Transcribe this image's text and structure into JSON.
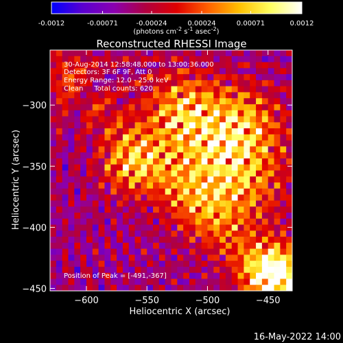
{
  "colorbar": {
    "tick_labels": [
      "-0.0012",
      "-0.00071",
      "-0.00024",
      "0.00024",
      "0.00071",
      "0.0012"
    ],
    "tick_values": [
      -0.0012,
      -0.00071,
      -0.00024,
      0.00024,
      0.00071,
      0.0012
    ],
    "range": [
      -0.0012,
      0.0012
    ],
    "units_html": "(photons cm<tspan dy='-4' font-size='8'>-2</tspan><tspan dy='4'> s</tspan><tspan dy='-4' font-size='8'>-1</tspan><tspan dy='4'> asec</tspan><tspan dy='-4' font-size='8'>-2</tspan><tspan dy='4'>)</tspan>",
    "colors": [
      "#0000ff",
      "#5a00d0",
      "#8a00b0",
      "#b00040",
      "#e00000",
      "#ff6000",
      "#ffc000",
      "#ffff60",
      "#ffffff"
    ]
  },
  "chart_data": {
    "type": "heatmap",
    "title": "Reconstructed RHESSI Image",
    "xlabel": "Heliocentric X (arcsec)",
    "ylabel": "Heliocentric Y (arcsec)",
    "xlim": [
      -630,
      -430
    ],
    "ylim": [
      -452,
      -255
    ],
    "xticks": [
      -600,
      -550,
      -500,
      -450
    ],
    "yticks": [
      -300,
      -350,
      -400,
      -450
    ],
    "xtick_labels": [
      "−600",
      "−550",
      "−500",
      "−450"
    ],
    "ytick_labels": [
      "−300",
      "−350",
      "−400",
      "−450"
    ],
    "annotations": [
      "30-Aug-2014 12:58:48.000 to 13:00:36.000",
      "Detectors: 3F 6F 9F, Att 0",
      "Energy Range: 12.0 - 25.0 keV",
      "Clean     Total counts: 620."
    ],
    "peak_label": "Position of Peak = [-491,-367]",
    "peak": [
      -491,
      -367
    ],
    "colorscale": "Rainbow/red-temperature",
    "grid": false
  },
  "footer": {
    "timestamp": "16-May-2022 14:00"
  }
}
